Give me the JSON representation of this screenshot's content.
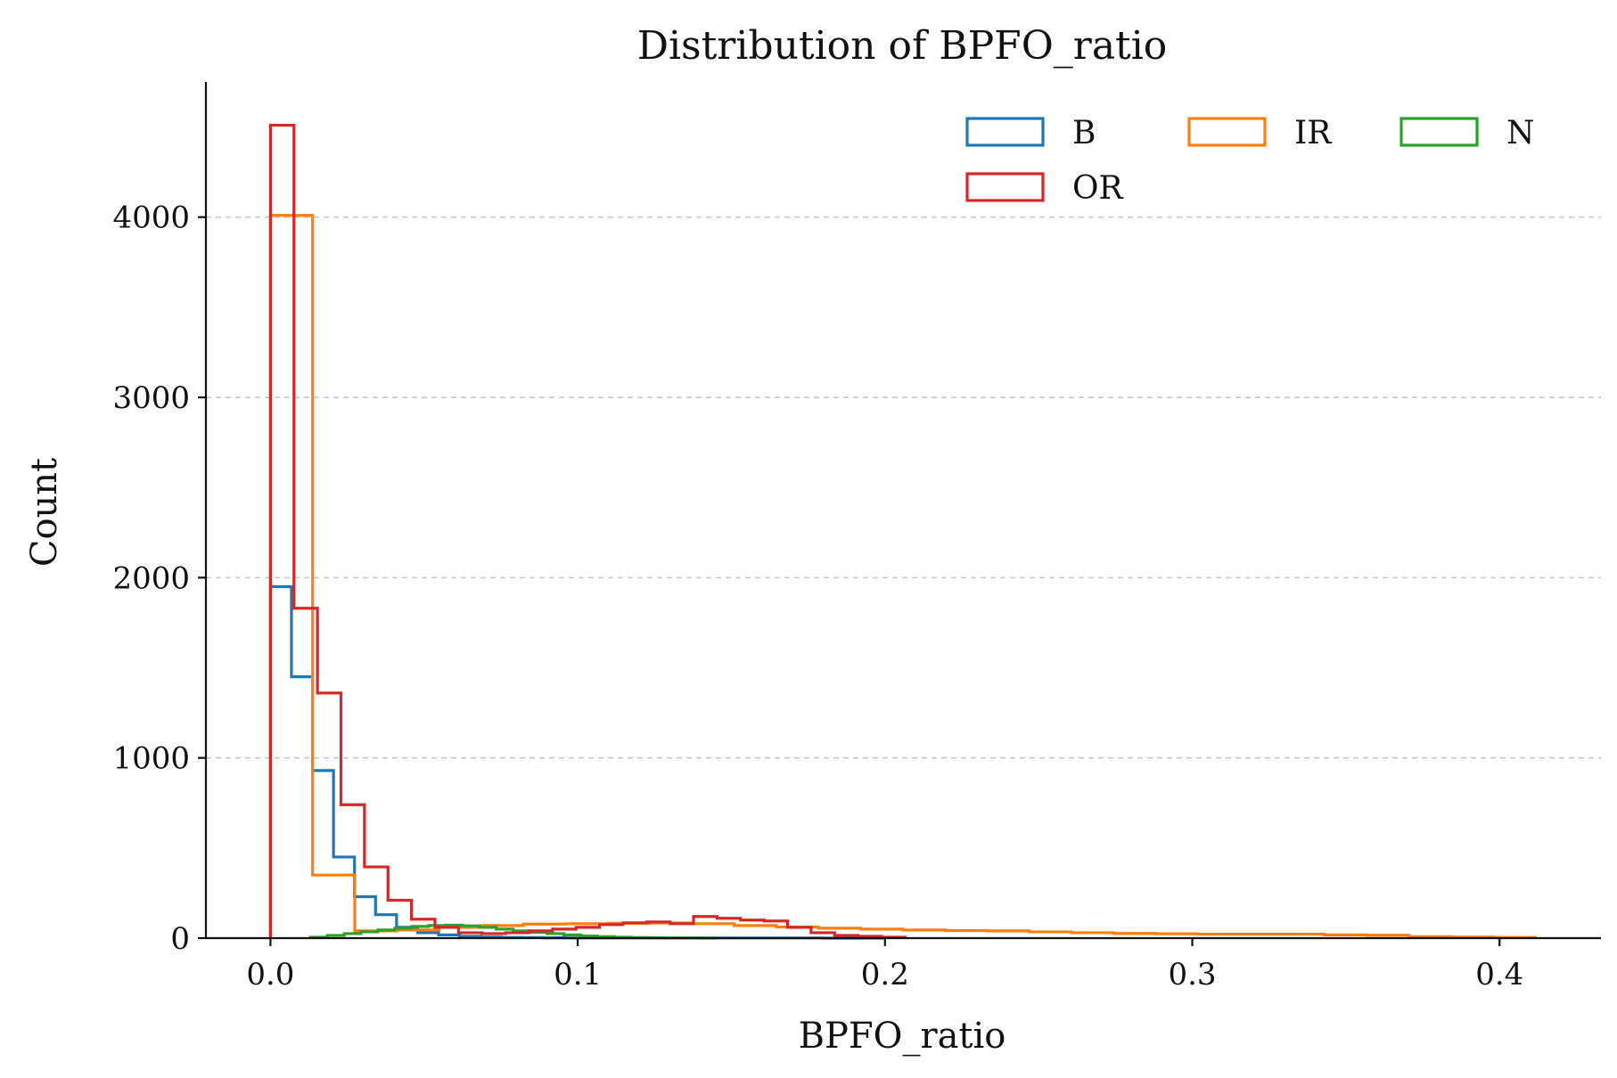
{
  "chart_data": {
    "type": "histogram-step",
    "title": "Distribution of BPFO_ratio",
    "xlabel": "BPFO_ratio",
    "ylabel": "Count",
    "xlim": [
      -0.021,
      0.433
    ],
    "ylim": [
      0,
      4750
    ],
    "xticks": [
      0.0,
      0.1,
      0.2,
      0.3,
      0.4
    ],
    "xtick_labels": [
      "0.0",
      "0.1",
      "0.2",
      "0.3",
      "0.4"
    ],
    "yticks": [
      0,
      1000,
      2000,
      3000,
      4000
    ],
    "ytick_labels": [
      "0",
      "1000",
      "2000",
      "3000",
      "4000"
    ],
    "grid": "y-dashed",
    "legend": {
      "placement": "top-right",
      "columns": 3
    },
    "series": [
      {
        "name": "B",
        "color": "#1f77b4",
        "bin_edges": [
          0.0,
          0.00684,
          0.01368,
          0.02052,
          0.02736,
          0.0342,
          0.04104,
          0.04788,
          0.05472,
          0.06156,
          0.0684,
          0.07524,
          0.08208,
          0.08892,
          0.09576,
          0.1026,
          0.12,
          0.15,
          0.18,
          0.2
        ],
        "counts": [
          1950,
          1450,
          930,
          450,
          230,
          130,
          60,
          30,
          18,
          10,
          6,
          4,
          3,
          2,
          1,
          1,
          1,
          1,
          0
        ]
      },
      {
        "name": "IR",
        "color": "#ff7f0e",
        "bin_edges": [
          0.0,
          0.01372,
          0.02744,
          0.04116,
          0.05488,
          0.0686,
          0.08232,
          0.09604,
          0.10976,
          0.12348,
          0.1372,
          0.15092,
          0.16464,
          0.17836,
          0.19208,
          0.2058,
          0.21952,
          0.23324,
          0.24696,
          0.26068,
          0.2744,
          0.28812,
          0.30184,
          0.31556,
          0.32928,
          0.343,
          0.35672,
          0.37044,
          0.38416,
          0.39788,
          0.4116
        ],
        "counts": [
          4010,
          350,
          40,
          45,
          60,
          70,
          78,
          80,
          82,
          84,
          80,
          70,
          62,
          55,
          50,
          45,
          42,
          40,
          35,
          30,
          26,
          24,
          22,
          22,
          22,
          18,
          16,
          8,
          6,
          4
        ]
      },
      {
        "name": "N",
        "color": "#2ca02c",
        "bin_edges": [
          0.013,
          0.0185,
          0.024,
          0.0295,
          0.035,
          0.0405,
          0.046,
          0.0515,
          0.057,
          0.0625,
          0.068,
          0.0735,
          0.079,
          0.0845,
          0.09,
          0.0955,
          0.101,
          0.1065,
          0.112,
          0.1175,
          0.123,
          0.1285,
          0.134,
          0.1395,
          0.145
        ],
        "counts": [
          5,
          15,
          25,
          35,
          45,
          55,
          65,
          70,
          72,
          68,
          60,
          50,
          40,
          32,
          25,
          18,
          12,
          8,
          5,
          3,
          2,
          1,
          1,
          0
        ]
      },
      {
        "name": "OR",
        "color": "#d62728",
        "bin_edges": [
          0.0,
          0.00765,
          0.0153,
          0.02295,
          0.0306,
          0.03825,
          0.0459,
          0.05355,
          0.0612,
          0.06885,
          0.0765,
          0.08415,
          0.0918,
          0.09945,
          0.1071,
          0.11475,
          0.1224,
          0.13005,
          0.1377,
          0.14535,
          0.153,
          0.16065,
          0.1683,
          0.17595,
          0.1836,
          0.19125,
          0.1989,
          0.20655
        ],
        "counts": [
          4510,
          1830,
          1360,
          740,
          395,
          210,
          105,
          60,
          30,
          25,
          30,
          40,
          50,
          60,
          75,
          85,
          90,
          80,
          120,
          110,
          100,
          95,
          60,
          30,
          15,
          10,
          5
        ]
      }
    ]
  }
}
